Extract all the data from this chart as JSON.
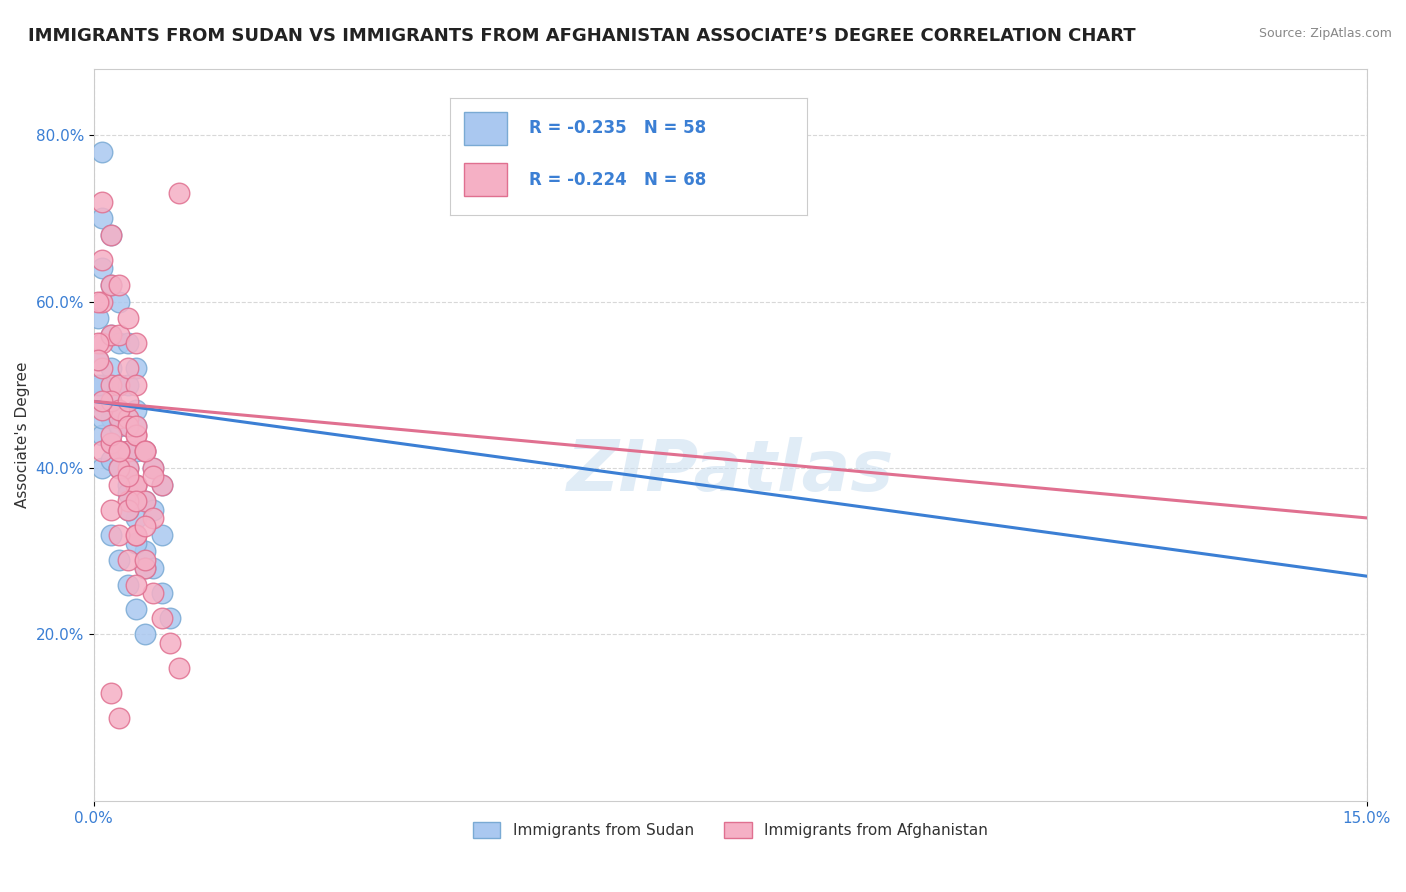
{
  "title": "IMMIGRANTS FROM SUDAN VS IMMIGRANTS FROM AFGHANISTAN ASSOCIATE’S DEGREE CORRELATION CHART",
  "source": "Source: ZipAtlas.com",
  "ylabel": "Associate's Degree",
  "series": [
    {
      "name": "Immigrants from Sudan",
      "color": "#aac8f0",
      "edge_color": "#7aaad4",
      "R": -0.235,
      "N": 58,
      "trend_color": "#3b7fd4",
      "trend_x0": 0.0,
      "trend_y0": 0.48,
      "trend_x1": 0.15,
      "trend_y1": 0.27,
      "x": [
        0.001,
        0.001,
        0.001,
        0.002,
        0.002,
        0.002,
        0.002,
        0.002,
        0.003,
        0.003,
        0.003,
        0.003,
        0.003,
        0.004,
        0.004,
        0.004,
        0.004,
        0.005,
        0.005,
        0.005,
        0.0005,
        0.0005,
        0.0005,
        0.001,
        0.001,
        0.001,
        0.002,
        0.002,
        0.003,
        0.003,
        0.004,
        0.004,
        0.005,
        0.005,
        0.006,
        0.006,
        0.007,
        0.007,
        0.008,
        0.008,
        0.0005,
        0.001,
        0.002,
        0.003,
        0.004,
        0.005,
        0.006,
        0.007,
        0.008,
        0.009,
        0.002,
        0.003,
        0.004,
        0.005,
        0.006,
        0.004,
        0.005,
        0.006
      ],
      "y": [
        0.78,
        0.7,
        0.64,
        0.68,
        0.62,
        0.56,
        0.52,
        0.48,
        0.6,
        0.55,
        0.5,
        0.46,
        0.42,
        0.55,
        0.5,
        0.45,
        0.4,
        0.52,
        0.47,
        0.42,
        0.58,
        0.53,
        0.48,
        0.5,
        0.44,
        0.4,
        0.46,
        0.41,
        0.45,
        0.4,
        0.42,
        0.38,
        0.45,
        0.38,
        0.42,
        0.36,
        0.4,
        0.35,
        0.38,
        0.32,
        0.5,
        0.46,
        0.43,
        0.4,
        0.37,
        0.34,
        0.3,
        0.28,
        0.25,
        0.22,
        0.32,
        0.29,
        0.26,
        0.23,
        0.2,
        0.35,
        0.31,
        0.28
      ]
    },
    {
      "name": "Immigrants from Afghanistan",
      "color": "#f5b0c5",
      "edge_color": "#e07090",
      "R": -0.224,
      "N": 68,
      "trend_color": "#e07090",
      "trend_x0": 0.0,
      "trend_y0": 0.48,
      "trend_x1": 0.15,
      "trend_y1": 0.34,
      "x": [
        0.001,
        0.001,
        0.001,
        0.001,
        0.002,
        0.002,
        0.002,
        0.002,
        0.003,
        0.003,
        0.003,
        0.003,
        0.004,
        0.004,
        0.004,
        0.004,
        0.005,
        0.005,
        0.005,
        0.005,
        0.0005,
        0.0005,
        0.001,
        0.001,
        0.001,
        0.002,
        0.002,
        0.003,
        0.003,
        0.004,
        0.004,
        0.005,
        0.005,
        0.006,
        0.006,
        0.007,
        0.007,
        0.008,
        0.0005,
        0.001,
        0.002,
        0.003,
        0.004,
        0.005,
        0.006,
        0.007,
        0.008,
        0.009,
        0.01,
        0.01,
        0.002,
        0.003,
        0.004,
        0.005,
        0.003,
        0.004,
        0.005,
        0.006,
        0.003,
        0.004,
        0.005,
        0.006,
        0.002,
        0.003,
        0.004,
        0.005,
        0.006,
        0.007
      ],
      "y": [
        0.72,
        0.65,
        0.6,
        0.55,
        0.68,
        0.62,
        0.56,
        0.5,
        0.62,
        0.56,
        0.5,
        0.46,
        0.58,
        0.52,
        0.46,
        0.42,
        0.55,
        0.5,
        0.44,
        0.38,
        0.6,
        0.55,
        0.52,
        0.47,
        0.42,
        0.48,
        0.43,
        0.47,
        0.42,
        0.45,
        0.4,
        0.44,
        0.38,
        0.42,
        0.36,
        0.4,
        0.34,
        0.38,
        0.53,
        0.48,
        0.44,
        0.4,
        0.36,
        0.32,
        0.28,
        0.25,
        0.22,
        0.19,
        0.16,
        0.73,
        0.35,
        0.32,
        0.29,
        0.26,
        0.38,
        0.35,
        0.32,
        0.29,
        0.42,
        0.39,
        0.36,
        0.33,
        0.13,
        0.1,
        0.48,
        0.45,
        0.42,
        0.39
      ]
    }
  ],
  "xlim": [
    0.0,
    0.15
  ],
  "ylim": [
    0.0,
    0.88
  ],
  "yticks": [
    0.2,
    0.4,
    0.6,
    0.8
  ],
  "ytick_labels": [
    "20.0%",
    "40.0%",
    "60.0%",
    "80.0%"
  ],
  "xtick_left": "0.0%",
  "xtick_right": "15.0%",
  "background_color": "#ffffff",
  "grid_color": "#d8d8d8",
  "title_fontsize": 13,
  "axis_label_fontsize": 11,
  "tick_fontsize": 11,
  "legend_fontsize": 12,
  "legend_color": "#3b7fd4"
}
